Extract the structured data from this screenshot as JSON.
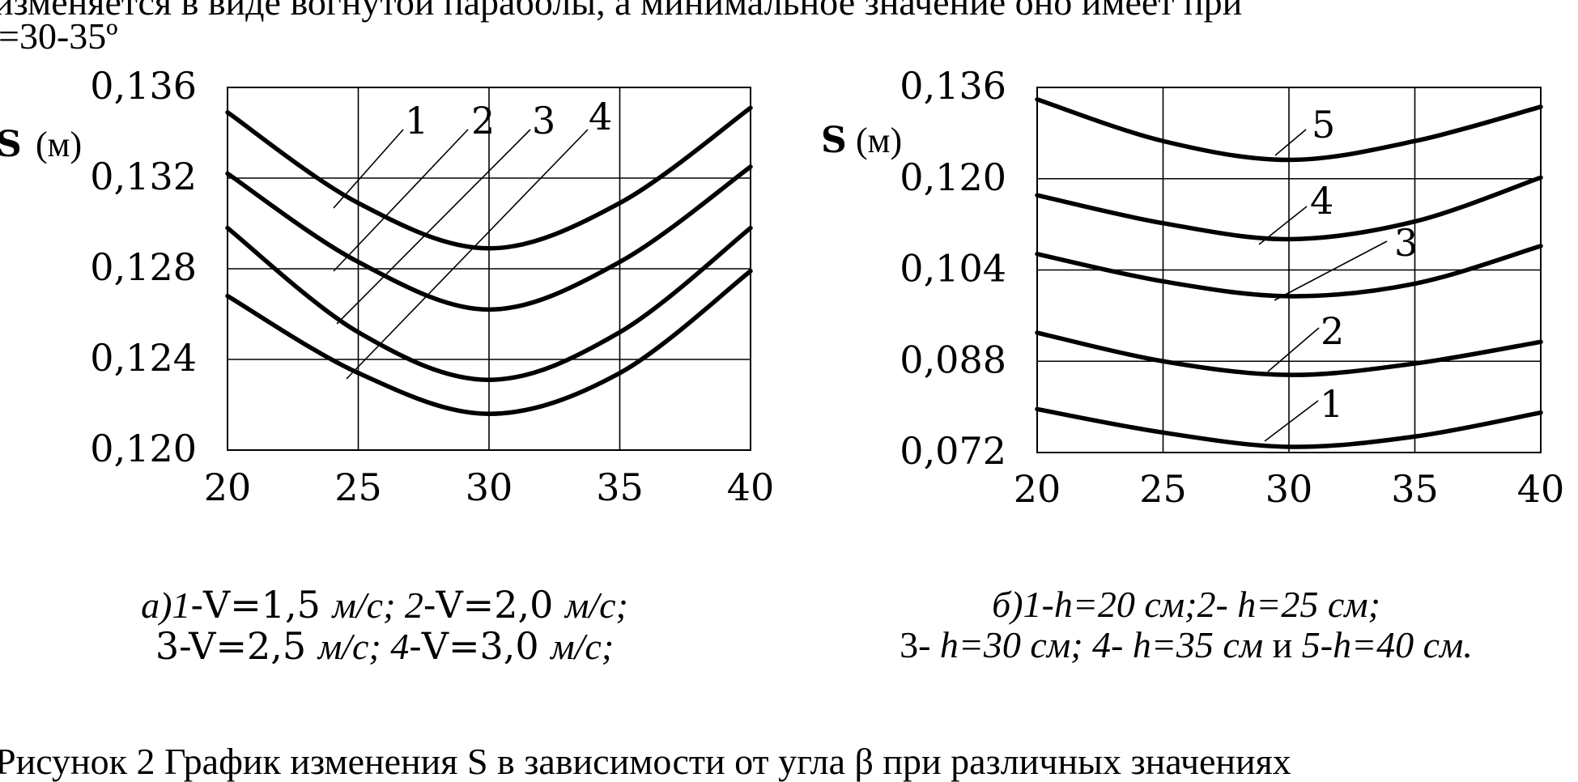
{
  "page_text": {
    "top_line": "изменяется в виде вогнутой параболы, а минимальное значение оно имеет при",
    "top_line_2": "=30-35º",
    "bottom_line": "Рисунок 2 График изменения S в зависимости от угла β при различных значениях"
  },
  "chart_data": [
    {
      "type": "line",
      "ylabel": "S (м)",
      "ylabel_parts": {
        "symbol": "S",
        "unit": "(м)"
      },
      "xlim": [
        20,
        40
      ],
      "ylim": [
        0.12,
        0.136
      ],
      "x_ticks": [
        "20",
        "25",
        "30",
        "35",
        "40"
      ],
      "y_ticks": [
        "0,120",
        "0,124",
        "0,128",
        "0,132",
        "0,136"
      ],
      "grid": true,
      "series": [
        {
          "name": "1",
          "x": [
            20,
            25,
            30,
            35,
            40
          ],
          "y": [
            0.1349,
            0.1309,
            0.1289,
            0.1309,
            0.1351
          ]
        },
        {
          "name": "2",
          "x": [
            20,
            25,
            30,
            35,
            40
          ],
          "y": [
            0.1322,
            0.1283,
            0.1262,
            0.1283,
            0.1325
          ]
        },
        {
          "name": "3",
          "x": [
            20,
            25,
            30,
            35,
            40
          ],
          "y": [
            0.1298,
            0.1252,
            0.1231,
            0.1252,
            0.1298
          ]
        },
        {
          "name": "4",
          "x": [
            20,
            25,
            30,
            35,
            40
          ],
          "y": [
            0.1268,
            0.1234,
            0.1216,
            0.1234,
            0.1279
          ]
        }
      ],
      "caption": [
        {
          "italic": "а)1",
          "plain": "-V=1,5 ",
          "italic2": "м/с; 2",
          "plain2": "-V=2,0 ",
          "italic3": "м/с;"
        },
        {
          "plain": "3-V=2,5 ",
          "italic": "м/с;  4",
          "plain2": "-V=3,0 ",
          "italic2": "м/с;"
        }
      ]
    },
    {
      "type": "line",
      "ylabel": "S (м)",
      "ylabel_parts": {
        "symbol": "S",
        "unit": "(м)"
      },
      "xlim": [
        20,
        40
      ],
      "ylim": [
        0.072,
        0.136
      ],
      "x_ticks": [
        "20",
        "25",
        "30",
        "35",
        "40"
      ],
      "y_ticks": [
        "0,072",
        "0,088",
        "0,104",
        "0,120",
        "0,136"
      ],
      "grid": true,
      "series": [
        {
          "name": "1",
          "x": [
            20,
            25,
            30,
            35,
            40
          ],
          "y": [
            0.0796,
            0.0755,
            0.073,
            0.0748,
            0.079
          ]
        },
        {
          "name": "2",
          "x": [
            20,
            25,
            30,
            35,
            40
          ],
          "y": [
            0.093,
            0.088,
            0.0856,
            0.0876,
            0.0914
          ]
        },
        {
          "name": "3",
          "x": [
            20,
            25,
            30,
            35,
            40
          ],
          "y": [
            0.1068,
            0.102,
            0.0994,
            0.1016,
            0.1082
          ]
        },
        {
          "name": "4",
          "x": [
            20,
            25,
            30,
            35,
            40
          ],
          "y": [
            0.1171,
            0.1122,
            0.1094,
            0.1125,
            0.1202
          ]
        },
        {
          "name": "5",
          "x": [
            20,
            25,
            30,
            35,
            40
          ],
          "y": [
            0.1339,
            0.1266,
            0.1233,
            0.1266,
            0.1326
          ]
        }
      ],
      "caption": [
        "б)1-h=20 см;2- h=25 см;",
        {
          "plain": "3- ",
          "italic": "h=30 см; 4- h=35 см",
          "plain2": " и ",
          "italic2": "5-h=40 см."
        }
      ]
    }
  ]
}
